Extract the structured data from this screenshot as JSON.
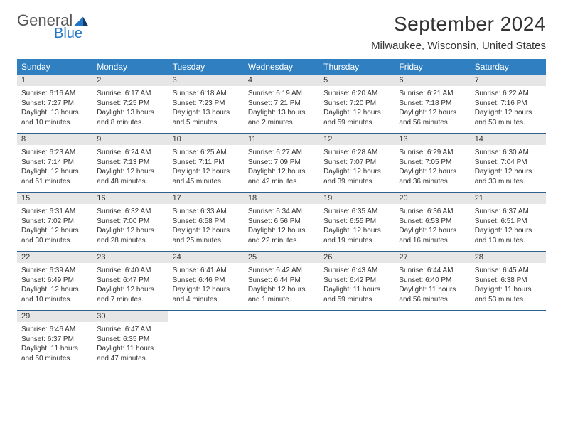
{
  "logo": {
    "word1": "General",
    "word2": "Blue"
  },
  "title": "September 2024",
  "location": "Milwaukee, Wisconsin, United States",
  "colors": {
    "header_bg": "#2f7fc1",
    "header_text": "#ffffff",
    "daynum_bg": "#e6e6e6",
    "row_border": "#2f5f8a",
    "logo_gray": "#555555",
    "logo_blue": "#2176c7",
    "text": "#333333"
  },
  "day_names": [
    "Sunday",
    "Monday",
    "Tuesday",
    "Wednesday",
    "Thursday",
    "Friday",
    "Saturday"
  ],
  "weeks": [
    [
      {
        "n": "1",
        "sunrise": "6:16 AM",
        "sunset": "7:27 PM",
        "daylight": "13 hours and 10 minutes."
      },
      {
        "n": "2",
        "sunrise": "6:17 AM",
        "sunset": "7:25 PM",
        "daylight": "13 hours and 8 minutes."
      },
      {
        "n": "3",
        "sunrise": "6:18 AM",
        "sunset": "7:23 PM",
        "daylight": "13 hours and 5 minutes."
      },
      {
        "n": "4",
        "sunrise": "6:19 AM",
        "sunset": "7:21 PM",
        "daylight": "13 hours and 2 minutes."
      },
      {
        "n": "5",
        "sunrise": "6:20 AM",
        "sunset": "7:20 PM",
        "daylight": "12 hours and 59 minutes."
      },
      {
        "n": "6",
        "sunrise": "6:21 AM",
        "sunset": "7:18 PM",
        "daylight": "12 hours and 56 minutes."
      },
      {
        "n": "7",
        "sunrise": "6:22 AM",
        "sunset": "7:16 PM",
        "daylight": "12 hours and 53 minutes."
      }
    ],
    [
      {
        "n": "8",
        "sunrise": "6:23 AM",
        "sunset": "7:14 PM",
        "daylight": "12 hours and 51 minutes."
      },
      {
        "n": "9",
        "sunrise": "6:24 AM",
        "sunset": "7:13 PM",
        "daylight": "12 hours and 48 minutes."
      },
      {
        "n": "10",
        "sunrise": "6:25 AM",
        "sunset": "7:11 PM",
        "daylight": "12 hours and 45 minutes."
      },
      {
        "n": "11",
        "sunrise": "6:27 AM",
        "sunset": "7:09 PM",
        "daylight": "12 hours and 42 minutes."
      },
      {
        "n": "12",
        "sunrise": "6:28 AM",
        "sunset": "7:07 PM",
        "daylight": "12 hours and 39 minutes."
      },
      {
        "n": "13",
        "sunrise": "6:29 AM",
        "sunset": "7:05 PM",
        "daylight": "12 hours and 36 minutes."
      },
      {
        "n": "14",
        "sunrise": "6:30 AM",
        "sunset": "7:04 PM",
        "daylight": "12 hours and 33 minutes."
      }
    ],
    [
      {
        "n": "15",
        "sunrise": "6:31 AM",
        "sunset": "7:02 PM",
        "daylight": "12 hours and 30 minutes."
      },
      {
        "n": "16",
        "sunrise": "6:32 AM",
        "sunset": "7:00 PM",
        "daylight": "12 hours and 28 minutes."
      },
      {
        "n": "17",
        "sunrise": "6:33 AM",
        "sunset": "6:58 PM",
        "daylight": "12 hours and 25 minutes."
      },
      {
        "n": "18",
        "sunrise": "6:34 AM",
        "sunset": "6:56 PM",
        "daylight": "12 hours and 22 minutes."
      },
      {
        "n": "19",
        "sunrise": "6:35 AM",
        "sunset": "6:55 PM",
        "daylight": "12 hours and 19 minutes."
      },
      {
        "n": "20",
        "sunrise": "6:36 AM",
        "sunset": "6:53 PM",
        "daylight": "12 hours and 16 minutes."
      },
      {
        "n": "21",
        "sunrise": "6:37 AM",
        "sunset": "6:51 PM",
        "daylight": "12 hours and 13 minutes."
      }
    ],
    [
      {
        "n": "22",
        "sunrise": "6:39 AM",
        "sunset": "6:49 PM",
        "daylight": "12 hours and 10 minutes."
      },
      {
        "n": "23",
        "sunrise": "6:40 AM",
        "sunset": "6:47 PM",
        "daylight": "12 hours and 7 minutes."
      },
      {
        "n": "24",
        "sunrise": "6:41 AM",
        "sunset": "6:46 PM",
        "daylight": "12 hours and 4 minutes."
      },
      {
        "n": "25",
        "sunrise": "6:42 AM",
        "sunset": "6:44 PM",
        "daylight": "12 hours and 1 minute."
      },
      {
        "n": "26",
        "sunrise": "6:43 AM",
        "sunset": "6:42 PM",
        "daylight": "11 hours and 59 minutes."
      },
      {
        "n": "27",
        "sunrise": "6:44 AM",
        "sunset": "6:40 PM",
        "daylight": "11 hours and 56 minutes."
      },
      {
        "n": "28",
        "sunrise": "6:45 AM",
        "sunset": "6:38 PM",
        "daylight": "11 hours and 53 minutes."
      }
    ],
    [
      {
        "n": "29",
        "sunrise": "6:46 AM",
        "sunset": "6:37 PM",
        "daylight": "11 hours and 50 minutes."
      },
      {
        "n": "30",
        "sunrise": "6:47 AM",
        "sunset": "6:35 PM",
        "daylight": "11 hours and 47 minutes."
      },
      null,
      null,
      null,
      null,
      null
    ]
  ],
  "labels": {
    "sunrise": "Sunrise: ",
    "sunset": "Sunset: ",
    "daylight": "Daylight: "
  }
}
